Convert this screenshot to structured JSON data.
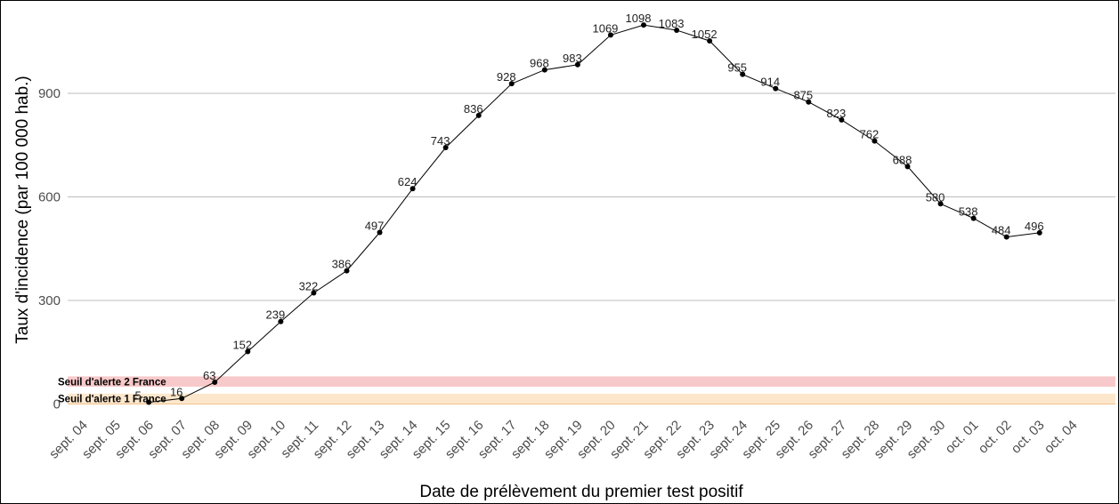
{
  "chart_data": {
    "type": "line",
    "title": "",
    "xlabel": "Date de prélèvement du premier test positif",
    "ylabel": "Taux d'incidence (par 100 000 hab.)",
    "ylim": [
      -10,
      1130
    ],
    "yticks": [
      0,
      300,
      600,
      900
    ],
    "grid": "horizontal",
    "legend": "none",
    "categories": [
      "sept. 04",
      "sept. 05",
      "sept. 06",
      "sept. 07",
      "sept. 08",
      "sept. 09",
      "sept. 10",
      "sept. 11",
      "sept. 12",
      "sept. 13",
      "sept. 14",
      "sept. 15",
      "sept. 16",
      "sept. 17",
      "sept. 18",
      "sept. 19",
      "sept. 20",
      "sept. 21",
      "sept. 22",
      "sept. 23",
      "sept. 24",
      "sept. 25",
      "sept. 26",
      "sept. 27",
      "sept. 28",
      "sept. 29",
      "sept. 30",
      "oct. 01",
      "oct. 02",
      "oct. 03",
      "oct. 04"
    ],
    "series": [
      {
        "x": [
          "sept. 06",
          "sept. 07",
          "sept. 08",
          "sept. 09",
          "sept. 10",
          "sept. 11",
          "sept. 12",
          "sept. 13",
          "sept. 14",
          "sept. 15",
          "sept. 16",
          "sept. 17",
          "sept. 18",
          "sept. 19",
          "sept. 20",
          "sept. 21",
          "sept. 22",
          "sept. 23",
          "sept. 24",
          "sept. 25",
          "sept. 26",
          "sept. 27",
          "sept. 28",
          "sept. 29",
          "sept. 30",
          "oct. 01",
          "oct. 02",
          "oct. 03"
        ],
        "values": [
          5,
          16,
          63,
          152,
          239,
          322,
          386,
          497,
          624,
          743,
          836,
          928,
          968,
          983,
          1069,
          1098,
          1083,
          1052,
          955,
          914,
          875,
          823,
          762,
          688,
          580,
          538,
          484,
          496
        ],
        "color": "#000000"
      }
    ],
    "thresholds": [
      {
        "label": "Seuil d'alerte 2 France",
        "from": 50,
        "to": 80,
        "color": "#f8c9ca"
      },
      {
        "label": "Seuil d'alerte 1 France",
        "from": 0,
        "to": 30,
        "color": "#fde7cc"
      }
    ]
  }
}
